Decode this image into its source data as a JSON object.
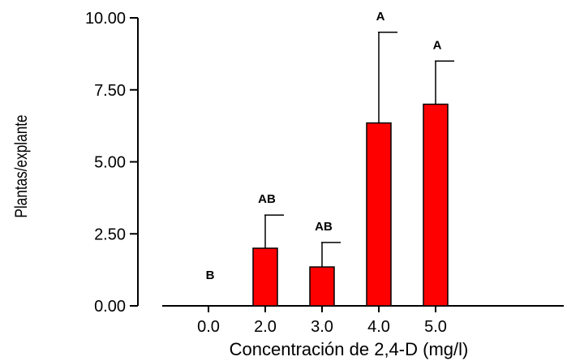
{
  "chart_data": {
    "type": "bar",
    "title": "",
    "xlabel": "Concentración de 2,4-D (mg/l)",
    "ylabel": "Plantas/explante",
    "ylim": [
      0,
      10
    ],
    "yticks": [
      "0.00",
      "2.50",
      "5.00",
      "7.50",
      "10.00"
    ],
    "ytick_values": [
      0,
      2.5,
      5,
      7.5,
      10
    ],
    "categories": [
      "0.0",
      "2.0",
      "3.0",
      "4.0",
      "5.0"
    ],
    "values": [
      0,
      2.0,
      1.35,
      6.35,
      7.0
    ],
    "error_upper": [
      0,
      3.15,
      2.2,
      9.5,
      8.5
    ],
    "significance": [
      "B",
      "AB",
      "AB",
      "A",
      "A"
    ],
    "bar_color": "#ff0000",
    "grid": false,
    "legend": "none"
  }
}
